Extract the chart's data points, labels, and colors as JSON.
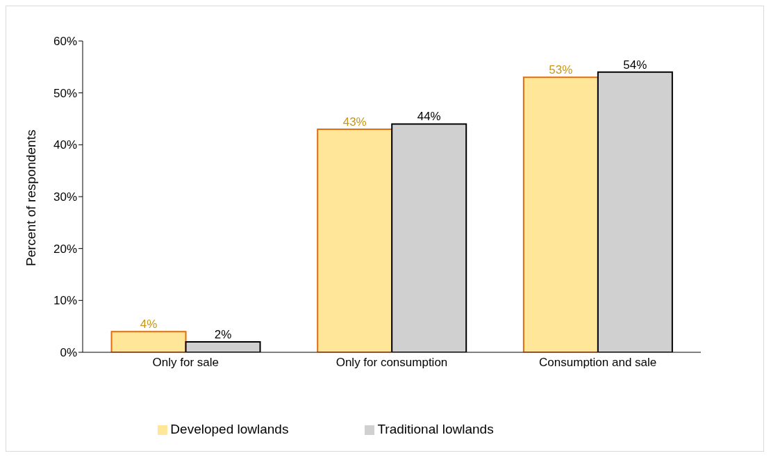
{
  "chart_data": {
    "type": "bar",
    "ylabel": "Percent of respondents",
    "categories": [
      "Only for sale",
      "Only for consumption",
      "Consumption and sale"
    ],
    "series": [
      {
        "name": "Developed lowlands",
        "color": "#ffe699",
        "values": [
          4,
          43,
          53
        ],
        "value_labels": [
          "4%",
          "43%",
          "53%"
        ]
      },
      {
        "name": "Traditional lowlands",
        "color": "#d0d0d0",
        "values": [
          2,
          44,
          54
        ],
        "value_labels": [
          "2%",
          "44%",
          "54%"
        ]
      }
    ],
    "ylim": [
      0,
      60
    ],
    "yticks": [
      {
        "value": 0,
        "label": "0%"
      },
      {
        "value": 10,
        "label": "10%"
      },
      {
        "value": 20,
        "label": "20%"
      },
      {
        "value": 30,
        "label": "30%"
      },
      {
        "value": 40,
        "label": "40%"
      },
      {
        "value": 50,
        "label": "50%"
      },
      {
        "value": 60,
        "label": "60%"
      }
    ],
    "grid": false,
    "legend": "bottom"
  }
}
